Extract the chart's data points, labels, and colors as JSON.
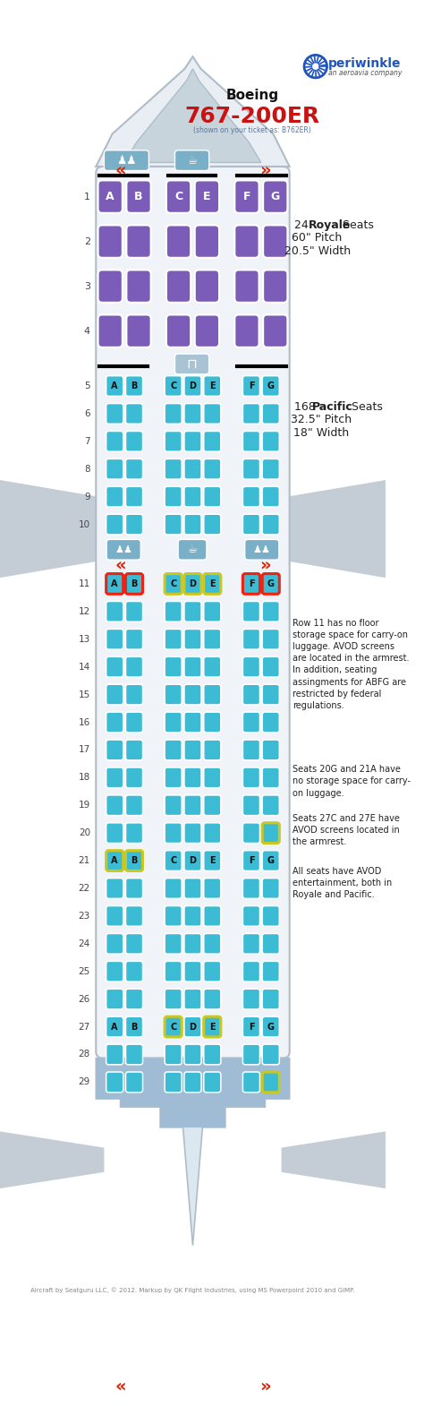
{
  "bg_color": "#ffffff",
  "fuselage_fill": "#f0f4f8",
  "fuselage_edge": "#b0bcc8",
  "wing_fill": "#c4cdd6",
  "galley_fill": "#7aafc8",
  "royale_color": "#7b5cb8",
  "pacific_color": "#3bbcd4",
  "seat_highlight": "#5ad0e8",
  "red_border": "#ee2211",
  "yellow_border": "#c8c820",
  "tail_blue": "#a0bcd4",
  "logo_blue": "#2255bb",
  "row_label_color": "#444444",
  "text_color": "#222222",
  "footer_color": "#888888",
  "royale_info_line1": "24 ",
  "royale_info_bold": "Royale",
  "royale_info_line1b": " Seats",
  "royale_info_line2": "60\" Pitch",
  "royale_info_line3": "20.5\" Width",
  "pacific_info_line1": "168 ",
  "pacific_info_bold": "Pacific",
  "pacific_info_line1b": " Seats",
  "pacific_info_line2": "32.5\" Pitch",
  "pacific_info_line3": "18\" Width",
  "note1": "Row 11 has no floor\nstorage space for carry-on\nluggage. AVOD screens\nare located in the armrest.\nIn addition, seating\nassingments for ABFG are\nrestricted by federal\nregulations.",
  "note2": "Seats 20G and 21A have\nno storage space for carry-\non luggage.",
  "note3": "Seats 27C and 27E have\nAVOD screens located in\nthe armrest.",
  "note4": "All seats have AVOD\nentertainment, both in\nRoyale and Pacific.",
  "footer": "Aircraft by Seatguru LLC, © 2012. Markup by QK Flight Industries, using MS Powerpoint 2010 and GIMP."
}
